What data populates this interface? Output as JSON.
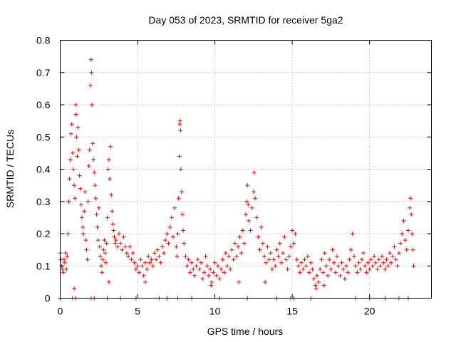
{
  "chart_data": {
    "type": "scatter",
    "title": "Day 053 of 2023, SRMTID for receiver 5ga2",
    "xlabel": "GPS time / hours",
    "ylabel": "SRMTID / TECUs",
    "xlim": [
      0,
      24
    ],
    "ylim": [
      0,
      0.8
    ],
    "xticks": [
      0,
      5,
      10,
      15,
      20
    ],
    "xtick_labels": [
      "0",
      "5",
      "10",
      "15",
      "20"
    ],
    "yticks": [
      0,
      0.1,
      0.2,
      0.3,
      0.4,
      0.5,
      0.6,
      0.7,
      0.8
    ],
    "ytick_labels": [
      "0",
      "0.1",
      "0.2",
      "0.3",
      "0.4",
      "0.5",
      "0.6",
      "0.7",
      "0.8"
    ],
    "grid": true,
    "marker": "+",
    "series": [
      {
        "name": "SRMTID",
        "color": "#ff0000",
        "points": [
          [
            0.0,
            0.14
          ],
          [
            0.05,
            0.12
          ],
          [
            0.1,
            0.1
          ],
          [
            0.15,
            0.09
          ],
          [
            0.2,
            0.08
          ],
          [
            0.25,
            0.12
          ],
          [
            0.3,
            0.11
          ],
          [
            0.35,
            0.14
          ],
          [
            0.4,
            0.09
          ],
          [
            0.45,
            0.13
          ],
          [
            0.5,
            0.2
          ],
          [
            0.55,
            0.3
          ],
          [
            0.6,
            0.37
          ],
          [
            0.65,
            0.43
          ],
          [
            0.7,
            0.51
          ],
          [
            0.75,
            0.54
          ],
          [
            0.8,
            0.45
          ],
          [
            0.85,
            0.4
          ],
          [
            0.9,
            0.35
          ],
          [
            0.95,
            0.31
          ],
          [
            1.0,
            0.6
          ],
          [
            1.02,
            0.57
          ],
          [
            1.05,
            0.5
          ],
          [
            1.1,
            0.44
          ],
          [
            1.15,
            0.53
          ],
          [
            1.2,
            0.46
          ],
          [
            1.25,
            0.38
          ],
          [
            1.3,
            0.34
          ],
          [
            1.35,
            0.29
          ],
          [
            1.4,
            0.25
          ],
          [
            1.45,
            0.22
          ],
          [
            1.5,
            0.2
          ],
          [
            1.55,
            0.27
          ],
          [
            1.6,
            0.33
          ],
          [
            1.65,
            0.18
          ],
          [
            1.7,
            0.15
          ],
          [
            1.75,
            0.12
          ],
          [
            1.8,
            0.3
          ],
          [
            1.85,
            0.41
          ],
          [
            1.9,
            0.46
          ],
          [
            1.95,
            0.66
          ],
          [
            2.0,
            0.74
          ],
          [
            2.02,
            0.7
          ],
          [
            2.05,
            0.6
          ],
          [
            2.1,
            0.48
          ],
          [
            2.15,
            0.43
          ],
          [
            2.2,
            0.39
          ],
          [
            2.25,
            0.35
          ],
          [
            2.3,
            0.31
          ],
          [
            2.35,
            0.26
          ],
          [
            2.4,
            0.22
          ],
          [
            2.45,
            0.18
          ],
          [
            2.5,
            0.28
          ],
          [
            2.55,
            0.16
          ],
          [
            2.6,
            0.13
          ],
          [
            2.65,
            0.1
          ],
          [
            2.7,
            0.08
          ],
          [
            2.75,
            0.12
          ],
          [
            2.8,
            0.15
          ],
          [
            2.85,
            0.18
          ],
          [
            2.9,
            0.14
          ],
          [
            2.95,
            0.11
          ],
          [
            3.0,
            0.17
          ],
          [
            3.05,
            0.25
          ],
          [
            3.1,
            0.4
          ],
          [
            3.15,
            0.43
          ],
          [
            3.2,
            0.37
          ],
          [
            3.25,
            0.47
          ],
          [
            3.3,
            0.32
          ],
          [
            3.35,
            0.27
          ],
          [
            3.4,
            0.23
          ],
          [
            3.45,
            0.21
          ],
          [
            3.5,
            0.19
          ],
          [
            3.55,
            0.17
          ],
          [
            3.6,
            0.18
          ],
          [
            3.7,
            0.16
          ],
          [
            3.8,
            0.2
          ],
          [
            3.9,
            0.17
          ],
          [
            4.0,
            0.15
          ],
          [
            4.1,
            0.19
          ],
          [
            4.2,
            0.16
          ],
          [
            4.3,
            0.14
          ],
          [
            4.4,
            0.13
          ],
          [
            4.5,
            0.16
          ],
          [
            4.6,
            0.12
          ],
          [
            4.7,
            0.14
          ],
          [
            4.8,
            0.11
          ],
          [
            4.9,
            0.09
          ],
          [
            5.0,
            0.1
          ],
          [
            5.1,
            0.08
          ],
          [
            5.2,
            0.12
          ],
          [
            5.3,
            0.1
          ],
          [
            5.4,
            0.07
          ],
          [
            5.5,
            0.11
          ],
          [
            5.6,
            0.09
          ],
          [
            5.7,
            0.13
          ],
          [
            5.8,
            0.11
          ],
          [
            5.9,
            0.12
          ],
          [
            6.0,
            0.1
          ],
          [
            6.1,
            0.14
          ],
          [
            6.2,
            0.12
          ],
          [
            6.3,
            0.15
          ],
          [
            6.4,
            0.13
          ],
          [
            6.5,
            0.11
          ],
          [
            6.6,
            0.16
          ],
          [
            6.7,
            0.14
          ],
          [
            6.8,
            0.18
          ],
          [
            6.9,
            0.2
          ],
          [
            7.0,
            0.17
          ],
          [
            7.1,
            0.22
          ],
          [
            7.2,
            0.25
          ],
          [
            7.3,
            0.19
          ],
          [
            7.4,
            0.28
          ],
          [
            7.5,
            0.16
          ],
          [
            7.55,
            0.13
          ],
          [
            7.6,
            0.2
          ],
          [
            7.65,
            0.31
          ],
          [
            7.7,
            0.44
          ],
          [
            7.72,
            0.54
          ],
          [
            7.75,
            0.55
          ],
          [
            7.78,
            0.52
          ],
          [
            7.8,
            0.4
          ],
          [
            7.85,
            0.33
          ],
          [
            7.9,
            0.26
          ],
          [
            7.95,
            0.21
          ],
          [
            8.0,
            0.17
          ],
          [
            8.1,
            0.13
          ],
          [
            8.2,
            0.1
          ],
          [
            8.3,
            0.12
          ],
          [
            8.4,
            0.08
          ],
          [
            8.5,
            0.11
          ],
          [
            8.6,
            0.09
          ],
          [
            8.7,
            0.07
          ],
          [
            8.8,
            0.1
          ],
          [
            8.9,
            0.12
          ],
          [
            9.0,
            0.09
          ],
          [
            9.1,
            0.11
          ],
          [
            9.2,
            0.06
          ],
          [
            9.3,
            0.08
          ],
          [
            9.4,
            0.13
          ],
          [
            9.5,
            0.1
          ],
          [
            9.6,
            0.07
          ],
          [
            9.7,
            0.09
          ],
          [
            9.8,
            0.05
          ],
          [
            9.9,
            0.08
          ],
          [
            10.0,
            0.11
          ],
          [
            10.1,
            0.07
          ],
          [
            10.2,
            0.1
          ],
          [
            10.3,
            0.06
          ],
          [
            10.4,
            0.09
          ],
          [
            10.5,
            0.12
          ],
          [
            10.6,
            0.08
          ],
          [
            10.7,
            0.14
          ],
          [
            10.8,
            0.1
          ],
          [
            10.9,
            0.13
          ],
          [
            11.0,
            0.09
          ],
          [
            11.1,
            0.15
          ],
          [
            11.2,
            0.12
          ],
          [
            11.3,
            0.17
          ],
          [
            11.4,
            0.13
          ],
          [
            11.5,
            0.16
          ],
          [
            11.6,
            0.19
          ],
          [
            11.7,
            0.14
          ],
          [
            11.8,
            0.21
          ],
          [
            11.9,
            0.17
          ],
          [
            12.0,
            0.26
          ],
          [
            12.05,
            0.3
          ],
          [
            12.1,
            0.35
          ],
          [
            12.15,
            0.29
          ],
          [
            12.2,
            0.24
          ],
          [
            12.3,
            0.21
          ],
          [
            12.4,
            0.28
          ],
          [
            12.5,
            0.33
          ],
          [
            12.55,
            0.39
          ],
          [
            12.6,
            0.31
          ],
          [
            12.7,
            0.25
          ],
          [
            12.8,
            0.19
          ],
          [
            12.9,
            0.15
          ],
          [
            13.0,
            0.22
          ],
          [
            13.1,
            0.17
          ],
          [
            13.2,
            0.13
          ],
          [
            13.3,
            0.11
          ],
          [
            13.4,
            0.16
          ],
          [
            13.5,
            0.12
          ],
          [
            13.6,
            0.14
          ],
          [
            13.7,
            0.09
          ],
          [
            13.8,
            0.12
          ],
          [
            13.9,
            0.1
          ],
          [
            14.0,
            0.15
          ],
          [
            14.1,
            0.13
          ],
          [
            14.2,
            0.17
          ],
          [
            14.3,
            0.11
          ],
          [
            14.4,
            0.14
          ],
          [
            14.5,
            0.19
          ],
          [
            14.6,
            0.12
          ],
          [
            14.7,
            0.09
          ],
          [
            14.8,
            0.13
          ],
          [
            14.9,
            0.16
          ],
          [
            15.0,
            0.21
          ],
          [
            15.1,
            0.17
          ],
          [
            15.2,
            0.2
          ],
          [
            15.3,
            0.12
          ],
          [
            15.4,
            0.1
          ],
          [
            15.5,
            0.08
          ],
          [
            15.6,
            0.11
          ],
          [
            15.7,
            0.09
          ],
          [
            15.8,
            0.12
          ],
          [
            15.9,
            0.1
          ],
          [
            16.0,
            0.13
          ],
          [
            16.1,
            0.08
          ],
          [
            16.2,
            0.11
          ],
          [
            16.3,
            0.09
          ],
          [
            16.4,
            0.06
          ],
          [
            16.5,
            0.04
          ],
          [
            16.6,
            0.07
          ],
          [
            16.7,
            0.05
          ],
          [
            16.8,
            0.09
          ],
          [
            16.9,
            0.12
          ],
          [
            17.0,
            0.08
          ],
          [
            17.1,
            0.14
          ],
          [
            17.2,
            0.1
          ],
          [
            17.3,
            0.07
          ],
          [
            17.4,
            0.12
          ],
          [
            17.5,
            0.09
          ],
          [
            17.6,
            0.15
          ],
          [
            17.7,
            0.11
          ],
          [
            17.8,
            0.08
          ],
          [
            17.9,
            0.13
          ],
          [
            18.0,
            0.1
          ],
          [
            18.1,
            0.07
          ],
          [
            18.2,
            0.11
          ],
          [
            18.3,
            0.09
          ],
          [
            18.4,
            0.06
          ],
          [
            18.5,
            0.1
          ],
          [
            18.6,
            0.08
          ],
          [
            18.7,
            0.12
          ],
          [
            18.8,
            0.15
          ],
          [
            18.9,
            0.2
          ],
          [
            19.0,
            0.13
          ],
          [
            19.1,
            0.1
          ],
          [
            19.2,
            0.08
          ],
          [
            19.3,
            0.11
          ],
          [
            19.4,
            0.09
          ],
          [
            19.5,
            0.12
          ],
          [
            19.6,
            0.14
          ],
          [
            19.7,
            0.1
          ],
          [
            19.8,
            0.08
          ],
          [
            19.9,
            0.11
          ],
          [
            20.0,
            0.09
          ],
          [
            20.1,
            0.12
          ],
          [
            20.2,
            0.1
          ],
          [
            20.3,
            0.13
          ],
          [
            20.4,
            0.11
          ],
          [
            20.5,
            0.09
          ],
          [
            20.6,
            0.12
          ],
          [
            20.7,
            0.1
          ],
          [
            20.8,
            0.13
          ],
          [
            20.9,
            0.11
          ],
          [
            21.0,
            0.09
          ],
          [
            21.1,
            0.12
          ],
          [
            21.2,
            0.1
          ],
          [
            21.3,
            0.14
          ],
          [
            21.4,
            0.11
          ],
          [
            21.5,
            0.13
          ],
          [
            21.6,
            0.16
          ],
          [
            21.7,
            0.12
          ],
          [
            21.8,
            0.1
          ],
          [
            21.9,
            0.14
          ],
          [
            22.0,
            0.17
          ],
          [
            22.1,
            0.2
          ],
          [
            22.2,
            0.24
          ],
          [
            22.3,
            0.18
          ],
          [
            22.4,
            0.15
          ],
          [
            22.5,
            0.21
          ],
          [
            22.6,
            0.28
          ],
          [
            22.65,
            0.31
          ],
          [
            22.7,
            0.26
          ],
          [
            22.75,
            0.2
          ],
          [
            22.8,
            0.15
          ],
          [
            22.85,
            0.1
          ],
          [
            0.9,
            0.03
          ],
          [
            5.5,
            0.05
          ],
          [
            9.75,
            0.04
          ],
          [
            13.25,
            0.05
          ],
          [
            16.55,
            0.03
          ],
          [
            17.05,
            0.04
          ],
          [
            3.15,
            0.05
          ],
          [
            11.55,
            0.05
          ],
          [
            0.0,
            0.0
          ],
          [
            0.8,
            0.0
          ],
          [
            1.0,
            0.0
          ],
          [
            2.0,
            0.0
          ],
          [
            2.2,
            0.0
          ],
          [
            3.05,
            0.0
          ],
          [
            3.9,
            0.0
          ],
          [
            4.9,
            0.0
          ],
          [
            6.4,
            0.0
          ],
          [
            6.9,
            0.0
          ],
          [
            7.6,
            0.0
          ],
          [
            8.5,
            0.0
          ],
          [
            10.3,
            0.0
          ],
          [
            12.1,
            0.0
          ],
          [
            14.0,
            0.0
          ],
          [
            14.9,
            0.0
          ],
          [
            15.1,
            0.0
          ],
          [
            16.2,
            0.0
          ],
          [
            19.1,
            0.0
          ],
          [
            20.0,
            0.0
          ],
          [
            21.0,
            0.0
          ],
          [
            21.9,
            0.0
          ],
          [
            22.5,
            0.0
          ]
        ]
      }
    ]
  }
}
